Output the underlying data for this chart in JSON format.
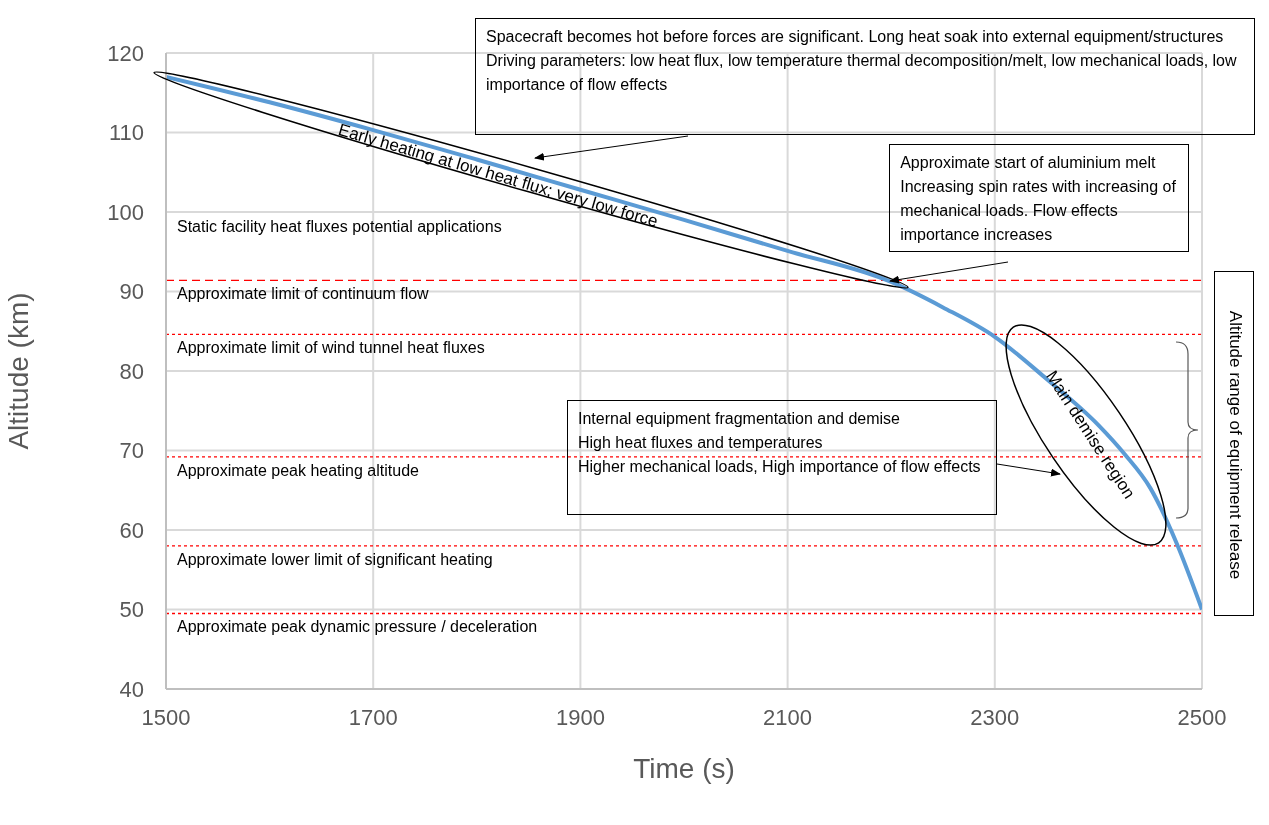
{
  "chart_data": {
    "type": "line",
    "xlabel": "Time (s)",
    "ylabel": "Altitude (km)",
    "x": [
      1500,
      1600,
      1700,
      1800,
      1900,
      2000,
      2100,
      2200,
      2250,
      2300,
      2350,
      2400,
      2425,
      2450,
      2475,
      2500
    ],
    "series": [
      {
        "color": "#5b9bd5",
        "values": [
          117,
          113.8,
          110.3,
          106.6,
          102.8,
          99.0,
          95.1,
          91.2,
          88.0,
          84.3,
          79.0,
          73.2,
          69.6,
          65.3,
          58.5,
          50
        ]
      }
    ],
    "xlim": [
      1500,
      2500
    ],
    "xticks": [
      1500,
      1700,
      1900,
      2100,
      2300,
      2500
    ],
    "ylim": [
      40,
      120
    ],
    "yticks": [
      40,
      50,
      60,
      70,
      80,
      90,
      100,
      110,
      120
    ],
    "grid": true,
    "marker": "none",
    "line_style": "solid",
    "ref_lines": [
      {
        "axis": "y",
        "value": 91.4,
        "label": "Approximate limit of continuum flow",
        "color": "#ff0000",
        "line_style": "dashed"
      },
      {
        "axis": "y",
        "value": 84.6,
        "label": "Approximate limit of wind tunnel heat fluxes",
        "color": "#ff0000",
        "line_style": "dotted"
      },
      {
        "axis": "y",
        "value": 69.2,
        "label": "Approximate peak heating altitude",
        "color": "#ff0000",
        "line_style": "dotted"
      },
      {
        "axis": "y",
        "value": 58.0,
        "label": "Approximate lower limit of significant heating",
        "color": "#ff0000",
        "line_style": "dotted"
      },
      {
        "axis": "y",
        "value": 49.5,
        "label": "Approximate peak dynamic pressure / deceleration",
        "color": "#ff0000",
        "line_style": "dotted"
      }
    ],
    "annotations": [
      "Spacecraft becomes hot before forces are significant. Long heat soak into external equipment/structures\nDriving parameters: low heat flux, low temperature thermal decomposition/melt, low mechanical loads, low importance of flow effects",
      "Early heating at low heat flux; very low force",
      {
        "text": "Approximate start of aluminium melt\nIncreasing spin rates with increasing of mechanical loads. Flow effects importance increases",
        "x": 2200,
        "y": 91.2
      },
      "Internal equipment fragmentation and demise\nHigh heat fluxes and temperatures\nHigher mechanical loads, High importance of flow effects",
      "Main demise region",
      "Altitude range of equipment release",
      "Static facility heat fluxes potential applications"
    ]
  }
}
